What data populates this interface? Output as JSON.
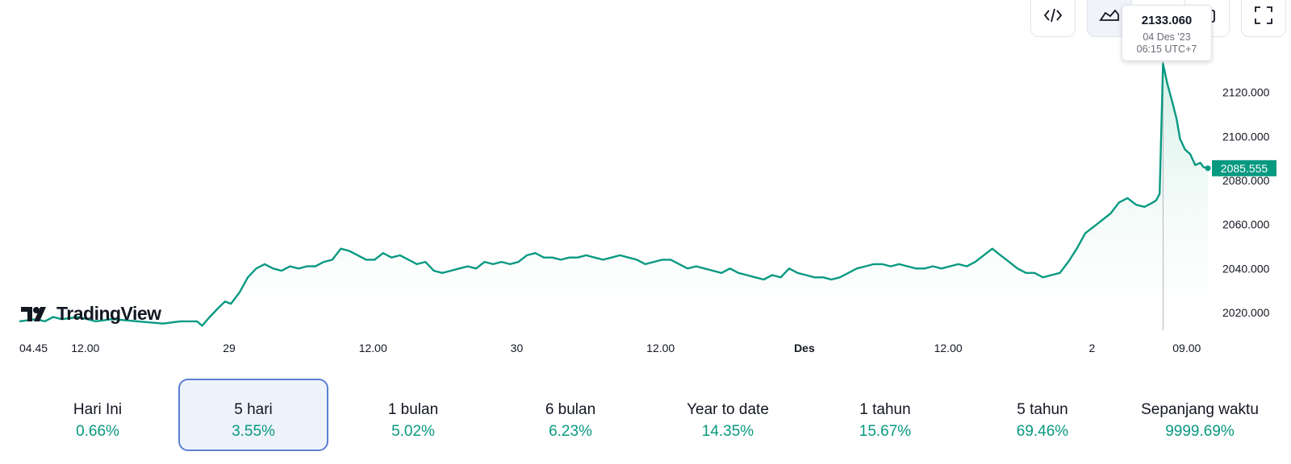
{
  "toolbar": {
    "buttons": [
      {
        "name": "embed-code-icon",
        "active": false
      },
      {
        "name": "area-chart-icon",
        "active": true
      },
      {
        "name": "screenshot-icon",
        "active": false
      },
      {
        "name": "fullscreen-icon",
        "active": false
      }
    ]
  },
  "tooltip": {
    "value": "2133.060",
    "date": "04 Des '23",
    "time": "06:15 UTC+7"
  },
  "logo": {
    "text": "TradingView"
  },
  "colors": {
    "line": "#089981",
    "fill_top": "#cfeee4",
    "price_badge": "#089981",
    "selected_border": "#5b7fd4"
  },
  "chart_data": {
    "type": "area",
    "ylim": [
      2012,
      2140
    ],
    "y_ticks": [
      {
        "value": 2020,
        "label": "2020.000"
      },
      {
        "value": 2040,
        "label": "2040.000"
      },
      {
        "value": 2060,
        "label": "2060.000"
      },
      {
        "value": 2080,
        "label": "2080.000"
      },
      {
        "value": 2100,
        "label": "2100.000"
      },
      {
        "value": 2120,
        "label": "2120.000"
      }
    ],
    "x_ticks": [
      {
        "t": 0.5,
        "label": "04.45",
        "bold": false
      },
      {
        "t": 7.8,
        "label": "12.00",
        "bold": false
      },
      {
        "t": 24.8,
        "label": "29",
        "bold": false
      },
      {
        "t": 41.8,
        "label": "12.00",
        "bold": false
      },
      {
        "t": 58.8,
        "label": "30",
        "bold": false
      },
      {
        "t": 75.8,
        "label": "12.00",
        "bold": false
      },
      {
        "t": 92.8,
        "label": "Des",
        "bold": true
      },
      {
        "t": 109.8,
        "label": "12.00",
        "bold": false
      },
      {
        "t": 126.8,
        "label": "2",
        "bold": false
      },
      {
        "t": 138.0,
        "label": "09.00",
        "bold": false
      }
    ],
    "last_price": {
      "value": 2085.555,
      "label": "2085.555"
    },
    "crosshair_t": 135.2,
    "points": [
      [
        0,
        2016
      ],
      [
        2,
        2017
      ],
      [
        3,
        2016
      ],
      [
        4,
        2018
      ],
      [
        5,
        2017
      ],
      [
        7,
        2018
      ],
      [
        9,
        2016
      ],
      [
        11,
        2017
      ],
      [
        14,
        2016
      ],
      [
        17,
        2015
      ],
      [
        19,
        2016
      ],
      [
        21,
        2016
      ],
      [
        21.6,
        2014
      ],
      [
        22.5,
        2018
      ],
      [
        23.5,
        2022
      ],
      [
        24.3,
        2025
      ],
      [
        25,
        2024
      ],
      [
        26,
        2029
      ],
      [
        27,
        2036
      ],
      [
        28,
        2040
      ],
      [
        29,
        2042
      ],
      [
        30,
        2040
      ],
      [
        31,
        2039
      ],
      [
        32,
        2041
      ],
      [
        33,
        2040
      ],
      [
        34,
        2041
      ],
      [
        35,
        2041
      ],
      [
        36,
        2043
      ],
      [
        37,
        2044
      ],
      [
        38,
        2049
      ],
      [
        39,
        2048
      ],
      [
        40,
        2046
      ],
      [
        41,
        2044
      ],
      [
        42,
        2044
      ],
      [
        43,
        2047
      ],
      [
        44,
        2045
      ],
      [
        45,
        2046
      ],
      [
        46,
        2044
      ],
      [
        47,
        2042
      ],
      [
        48,
        2043
      ],
      [
        49,
        2039
      ],
      [
        50,
        2038
      ],
      [
        51,
        2039
      ],
      [
        52,
        2040
      ],
      [
        53,
        2041
      ],
      [
        54,
        2040
      ],
      [
        55,
        2043
      ],
      [
        56,
        2042
      ],
      [
        57,
        2043
      ],
      [
        58,
        2042
      ],
      [
        59,
        2043
      ],
      [
        60,
        2046
      ],
      [
        61,
        2047
      ],
      [
        62,
        2045
      ],
      [
        63,
        2045
      ],
      [
        64,
        2044
      ],
      [
        65,
        2045
      ],
      [
        66,
        2045
      ],
      [
        67,
        2046
      ],
      [
        68,
        2045
      ],
      [
        69,
        2044
      ],
      [
        70,
        2045
      ],
      [
        71,
        2046
      ],
      [
        72,
        2045
      ],
      [
        73,
        2044
      ],
      [
        74,
        2042
      ],
      [
        75,
        2043
      ],
      [
        76,
        2044
      ],
      [
        77,
        2044
      ],
      [
        78,
        2042
      ],
      [
        79,
        2040
      ],
      [
        80,
        2041
      ],
      [
        81,
        2040
      ],
      [
        82,
        2039
      ],
      [
        83,
        2038
      ],
      [
        84,
        2040
      ],
      [
        85,
        2038
      ],
      [
        86,
        2037
      ],
      [
        87,
        2036
      ],
      [
        88,
        2035
      ],
      [
        89,
        2037
      ],
      [
        90,
        2036
      ],
      [
        91,
        2040
      ],
      [
        92,
        2038
      ],
      [
        93,
        2037
      ],
      [
        94,
        2036
      ],
      [
        95,
        2036
      ],
      [
        96,
        2035
      ],
      [
        97,
        2036
      ],
      [
        98,
        2038
      ],
      [
        99,
        2040
      ],
      [
        100,
        2041
      ],
      [
        101,
        2042
      ],
      [
        102,
        2042
      ],
      [
        103,
        2041
      ],
      [
        104,
        2042
      ],
      [
        105,
        2041
      ],
      [
        106,
        2040
      ],
      [
        107,
        2040
      ],
      [
        108,
        2041
      ],
      [
        109,
        2040
      ],
      [
        110,
        2041
      ],
      [
        111,
        2042
      ],
      [
        112,
        2041
      ],
      [
        113,
        2043
      ],
      [
        114,
        2046
      ],
      [
        115,
        2049
      ],
      [
        116,
        2046
      ],
      [
        117,
        2043
      ],
      [
        118,
        2040
      ],
      [
        119,
        2038
      ],
      [
        120,
        2038
      ],
      [
        121,
        2036
      ],
      [
        122,
        2037
      ],
      [
        123,
        2038
      ],
      [
        124,
        2043
      ],
      [
        125,
        2049
      ],
      [
        126,
        2056
      ],
      [
        127,
        2059
      ],
      [
        128,
        2062
      ],
      [
        129,
        2065
      ],
      [
        130,
        2070
      ],
      [
        131,
        2072
      ],
      [
        132,
        2069
      ],
      [
        133,
        2068
      ],
      [
        134,
        2070
      ],
      [
        134.4,
        2071
      ],
      [
        134.8,
        2074
      ],
      [
        135.2,
        2133
      ],
      [
        135.7,
        2124
      ],
      [
        136.2,
        2117
      ],
      [
        136.8,
        2108
      ],
      [
        137.2,
        2099
      ],
      [
        137.8,
        2094
      ],
      [
        138.4,
        2092
      ],
      [
        139,
        2087
      ],
      [
        139.6,
        2088
      ],
      [
        140,
        2086
      ],
      [
        140.5,
        2085.555
      ]
    ]
  },
  "periods": [
    {
      "label": "Hari Ini",
      "change": "0.66%",
      "selected": false
    },
    {
      "label": "5 hari",
      "change": "3.55%",
      "selected": true
    },
    {
      "label": "1 bulan",
      "change": "5.02%",
      "selected": false
    },
    {
      "label": "6 bulan",
      "change": "6.23%",
      "selected": false
    },
    {
      "label": "Year to date",
      "change": "14.35%",
      "selected": false
    },
    {
      "label": "1 tahun",
      "change": "15.67%",
      "selected": false
    },
    {
      "label": "5 tahun",
      "change": "69.46%",
      "selected": false
    },
    {
      "label": "Sepanjang waktu",
      "change": "9999.69%",
      "selected": false
    }
  ]
}
